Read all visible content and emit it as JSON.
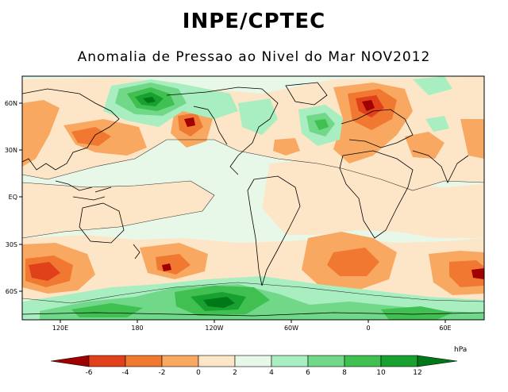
{
  "header": {
    "title": "INPE/CPTEC",
    "subtitle": "Anomalia de Pressao ao Nivel do Mar NOV2012"
  },
  "map": {
    "lat_labels": [
      "60N",
      "30N",
      "EQ",
      "30S",
      "60S"
    ],
    "lon_labels": [
      "120E",
      "180",
      "120W",
      "60W",
      "0",
      "60E"
    ],
    "colors": {
      "ocean_neutral": "#e8f8e8",
      "land_line": "#000000"
    }
  },
  "colorbar": {
    "unit": "hPa",
    "ticks": [
      "-6",
      "-4",
      "-2",
      "0",
      "2",
      "4",
      "6",
      "8",
      "10",
      "12"
    ],
    "colors": [
      "#a00000",
      "#e0401a",
      "#f07830",
      "#f8a860",
      "#fde6c8",
      "#e8f8e8",
      "#a8eec0",
      "#70d888",
      "#40c050",
      "#18a030",
      "#007818"
    ]
  }
}
